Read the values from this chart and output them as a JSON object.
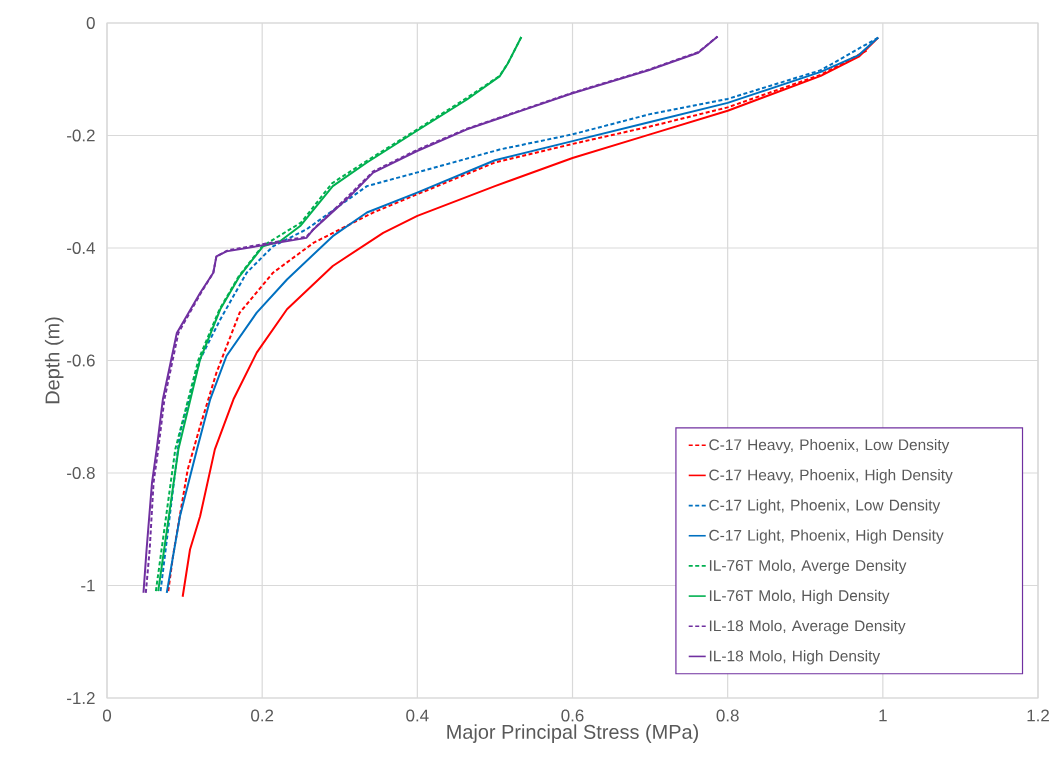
{
  "chart_data": {
    "type": "line",
    "xlabel": "Major Principal Stress (MPa)",
    "ylabel": "Depth (m)",
    "xlim": [
      0,
      1.2
    ],
    "ylim": [
      -1.2,
      0
    ],
    "xticks": [
      0,
      0.2,
      0.4,
      0.6,
      0.8,
      1,
      1.2
    ],
    "yticks": [
      -1.2,
      -1,
      -0.8,
      -0.6,
      -0.4,
      -0.2,
      0
    ],
    "grid": true,
    "legend": "bottom right",
    "marker": "none",
    "series": [
      {
        "name": "C-17 Heavy, Phoenix, Low Density",
        "color": "#ff0000",
        "line_style": "dashed",
        "x": [
          0.079,
          0.085,
          0.104,
          0.12,
          0.141,
          0.171,
          0.214,
          0.266,
          0.343,
          0.399,
          0.5,
          0.6,
          0.7,
          0.8,
          0.92,
          0.982
        ],
        "values": [
          -1.01,
          -0.948,
          -0.794,
          -0.717,
          -0.622,
          -0.515,
          -0.444,
          -0.391,
          -0.337,
          -0.305,
          -0.248,
          -0.215,
          -0.184,
          -0.15,
          -0.092,
          -0.047
        ]
      },
      {
        "name": "C-17 Heavy, Phoenix, High Density",
        "color": "#ff0000",
        "line_style": "solid",
        "x": [
          0.0975,
          0.107,
          0.12,
          0.139,
          0.163,
          0.193,
          0.232,
          0.291,
          0.356,
          0.4,
          0.5,
          0.6,
          0.7,
          0.8,
          0.92,
          0.969,
          0.994
        ],
        "values": [
          -1.02,
          -0.936,
          -0.877,
          -0.758,
          -0.669,
          -0.586,
          -0.509,
          -0.432,
          -0.373,
          -0.343,
          -0.29,
          -0.24,
          -0.198,
          -0.156,
          -0.094,
          -0.06,
          -0.026
        ]
      },
      {
        "name": "C-17 Light, Phoenix, Low Density",
        "color": "#0070c0",
        "line_style": "dashed",
        "x": [
          0.069,
          0.094,
          0.12,
          0.146,
          0.18,
          0.214,
          0.257,
          0.335,
          0.399,
          0.506,
          0.6,
          0.7,
          0.8,
          0.92,
          0.994
        ],
        "values": [
          -1.01,
          -0.729,
          -0.598,
          -0.527,
          -0.444,
          -0.397,
          -0.367,
          -0.29,
          -0.266,
          -0.225,
          -0.198,
          -0.162,
          -0.135,
          -0.084,
          -0.026
        ]
      },
      {
        "name": "C-17 Light, Phoenix, High Density",
        "color": "#0070c0",
        "line_style": "solid",
        "x": [
          0.077,
          0.094,
          0.116,
          0.133,
          0.154,
          0.193,
          0.232,
          0.291,
          0.335,
          0.399,
          0.5,
          0.6,
          0.7,
          0.8,
          0.92,
          0.969,
          0.994
        ],
        "values": [
          -1.013,
          -0.877,
          -0.758,
          -0.669,
          -0.592,
          -0.515,
          -0.456,
          -0.379,
          -0.337,
          -0.302,
          -0.244,
          -0.21,
          -0.176,
          -0.142,
          -0.087,
          -0.057,
          -0.026
        ]
      },
      {
        "name": "IL-76T Molo, Averge Density",
        "color": "#00b050",
        "line_style": "dashed",
        "x": [
          0.063,
          0.088,
          0.118,
          0.145,
          0.17,
          0.2,
          0.25,
          0.29,
          0.335,
          0.399,
          0.464,
          0.506,
          0.517,
          0.534
        ],
        "values": [
          -1.01,
          -0.758,
          -0.598,
          -0.509,
          -0.45,
          -0.397,
          -0.355,
          -0.285,
          -0.245,
          -0.19,
          -0.133,
          -0.094,
          -0.071,
          -0.025
        ]
      },
      {
        "name": "IL-76T Molo, High Density",
        "color": "#00b050",
        "line_style": "solid",
        "x": [
          0.066,
          0.092,
          0.12,
          0.146,
          0.171,
          0.201,
          0.223,
          0.249,
          0.291,
          0.335,
          0.399,
          0.464,
          0.506,
          0.517,
          0.534
        ],
        "values": [
          -1.01,
          -0.758,
          -0.598,
          -0.509,
          -0.45,
          -0.397,
          -0.388,
          -0.361,
          -0.29,
          -0.248,
          -0.192,
          -0.136,
          -0.095,
          -0.071,
          -0.025
        ]
      },
      {
        "name": "IL-18 Molo, Average Density",
        "color": "#7030a0",
        "line_style": "dashed",
        "x": [
          0.05,
          0.055,
          0.06,
          0.066,
          0.074,
          0.092,
          0.121,
          0.137,
          0.141,
          0.156,
          0.206,
          0.257,
          0.268,
          0.313,
          0.343,
          0.399,
          0.464,
          0.6,
          0.698,
          0.762,
          0.787
        ],
        "values": [
          -1.013,
          -0.936,
          -0.817,
          -0.758,
          -0.669,
          -0.551,
          -0.48,
          -0.444,
          -0.415,
          -0.404,
          -0.392,
          -0.38,
          -0.364,
          -0.305,
          -0.264,
          -0.226,
          -0.188,
          -0.124,
          -0.083,
          -0.052,
          -0.024
        ]
      },
      {
        "name": "IL-18 Molo, High Density",
        "color": "#7030a0",
        "line_style": "solid",
        "x": [
          0.047,
          0.051,
          0.058,
          0.064,
          0.072,
          0.09,
          0.12,
          0.137,
          0.141,
          0.154,
          0.206,
          0.257,
          0.266,
          0.313,
          0.343,
          0.399,
          0.464,
          0.6,
          0.698,
          0.762,
          0.787
        ],
        "values": [
          -1.013,
          -0.936,
          -0.817,
          -0.758,
          -0.669,
          -0.551,
          -0.48,
          -0.444,
          -0.415,
          -0.406,
          -0.394,
          -0.382,
          -0.367,
          -0.308,
          -0.266,
          -0.228,
          -0.189,
          -0.125,
          -0.084,
          -0.053,
          -0.024
        ]
      }
    ]
  }
}
